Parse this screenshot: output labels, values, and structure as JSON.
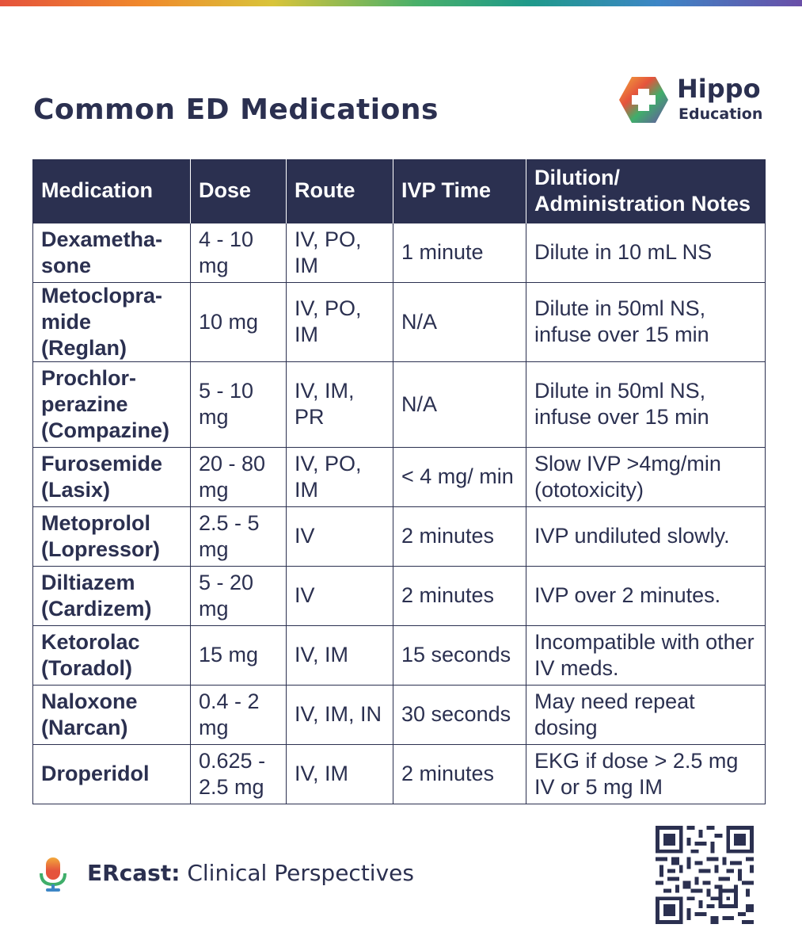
{
  "header": {
    "title": "Common ED Medications",
    "logo_line1": "Hippo",
    "logo_line2": "Education",
    "logo_icon": "plus-cross-hexagon-icon"
  },
  "colors": {
    "navy": "#2b3050",
    "logo_orange": "#f08a2c",
    "logo_green": "#3fae6a",
    "logo_blue": "#3d86c6",
    "logo_red": "#e5533c"
  },
  "table": {
    "columns": [
      "Medication",
      "Dose",
      "Route",
      "IVP Time",
      "Dilution/ Administration Notes"
    ],
    "rows": [
      {
        "medication": "Dexametha-sone",
        "dose": "4 - 10 mg",
        "route": "IV, PO, IM",
        "ivp_time": "1 minute",
        "notes": "Dilute in 10 mL NS"
      },
      {
        "medication": "Metoclopra-mide (Reglan)",
        "dose": "10 mg",
        "route": "IV, PO, IM",
        "ivp_time": "N/A",
        "notes": "Dilute in 50ml NS, infuse over 15 min"
      },
      {
        "medication": "Prochlor-perazine (Compazine)",
        "dose": "5 - 10 mg",
        "route": "IV, IM, PR",
        "ivp_time": "N/A",
        "notes": "Dilute in 50ml NS, infuse over 15 min"
      },
      {
        "medication": "Furosemide (Lasix)",
        "dose": "20 - 80 mg",
        "route": "IV, PO, IM",
        "ivp_time": "< 4 mg/ min",
        "notes": "Slow IVP >4mg/min (ototoxicity)"
      },
      {
        "medication": "Metoprolol (Lopressor)",
        "dose": "2.5 - 5 mg",
        "route": "IV",
        "ivp_time": "2 minutes",
        "notes": "IVP undiluted slowly."
      },
      {
        "medication": "Diltiazem (Cardizem)",
        "dose": "5 - 20 mg",
        "route": "IV",
        "ivp_time": "2 minutes",
        "notes": "IVP over 2 minutes."
      },
      {
        "medication": "Ketorolac (Toradol)",
        "dose": "15 mg",
        "route": "IV, IM",
        "ivp_time": "15 seconds",
        "notes": "Incompatible with other IV meds."
      },
      {
        "medication": "Naloxone (Narcan)",
        "dose": "0.4 - 2 mg",
        "route": "IV, IM, IN",
        "ivp_time": "30 seconds",
        "notes": "May need repeat dosing"
      },
      {
        "medication": "Droperidol",
        "dose": "0.625 - 2.5 mg",
        "route": "IV, IM",
        "ivp_time": "2 minutes",
        "notes": "EKG if dose > 2.5 mg IV or 5 mg IM"
      }
    ]
  },
  "footer": {
    "brand": "ERcast:",
    "tagline": "Clinical Perspectives",
    "mic_icon": "microphone-icon",
    "qr_icon": "qr-code-icon"
  }
}
